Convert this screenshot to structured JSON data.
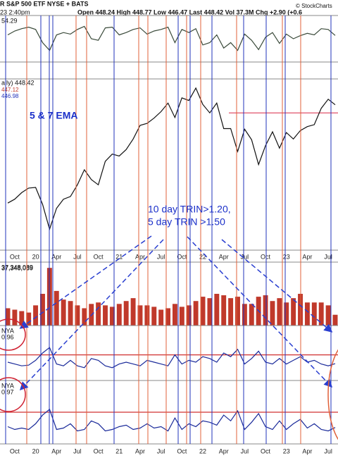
{
  "header": {
    "title": "R S&P 500 ETF NYSE + BATS",
    "quote": "Open 448.24 High 448.77 Low 446.47 Last 448.42 Vol 37.3M Chg +2.90 (+0.6",
    "time": "23 2:40pm",
    "source": "© StockCharts"
  },
  "chart_data": [
    {
      "type": "line",
      "legend": "54.29",
      "color": "#3a4a3a",
      "ylim": [
        20,
        80
      ],
      "categories": [
        null,
        "Oct",
        null,
        null,
        "20",
        null,
        null,
        "Apr",
        null,
        null,
        "Jul",
        null,
        null,
        "Oct",
        null,
        null,
        "21",
        null,
        null,
        "Apr",
        null,
        null,
        "Jul",
        null,
        null,
        "Oct",
        null,
        null,
        "22",
        null,
        null,
        "Apr",
        null,
        null,
        "Jul",
        null,
        null,
        "Oct",
        null,
        null,
        "23",
        null,
        null,
        "Apr",
        null,
        null,
        "Jul",
        null
      ],
      "values": [
        55,
        60,
        63,
        65,
        62,
        45,
        35,
        55,
        58,
        56,
        62,
        66,
        50,
        48,
        64,
        65,
        55,
        58,
        62,
        64,
        56,
        60,
        62,
        65,
        45,
        62,
        58,
        63,
        42,
        45,
        55,
        38,
        45,
        35,
        56,
        48,
        36,
        52,
        58,
        44,
        56,
        50,
        54,
        57,
        55,
        63,
        62,
        54.29
      ]
    },
    {
      "type": "line",
      "series": [
        {
          "name": "aily) 448.42",
          "color": "#111111",
          "values": [
            298,
            304,
            314,
            321,
            322,
            296,
            258,
            290,
            304,
            308,
            326,
            349,
            334,
            326,
            362,
            373,
            370,
            380,
            396,
            417,
            420,
            428,
            438,
            451,
            429,
            459,
            455,
            474,
            449,
            436,
            451,
            412,
            412,
            377,
            411,
            395,
            357,
            386,
            407,
            382,
            406,
            396,
            409,
            415,
            418,
            443,
            457,
            448.42
          ]
        }
      ],
      "legend_values": [
        {
          "label": "447.12",
          "color": "#c0392b"
        },
        {
          "label": "446.98",
          "color": "#2233bb"
        }
      ],
      "ylim": [
        226,
        488
      ],
      "hline": {
        "value": 436,
        "color": "#e0506a"
      },
      "annotations": [
        "5 & 7 EMA",
        "10 day TRIN>1.20,",
        "5 day TRIN >1.50"
      ]
    },
    {
      "type": "bar",
      "legend": "37,348,089",
      "color": "#c0392b",
      "ylim": [
        0,
        220
      ],
      "values": [
        60,
        55,
        50,
        45,
        70,
        110,
        200,
        120,
        90,
        85,
        70,
        60,
        75,
        80,
        70,
        65,
        75,
        85,
        95,
        70,
        70,
        65,
        55,
        60,
        75,
        65,
        70,
        85,
        100,
        95,
        110,
        105,
        95,
        100,
        75,
        75,
        100,
        105,
        85,
        95,
        80,
        95,
        110,
        80,
        80,
        80,
        70,
        37.348089
      ],
      "value_labels": [
        null,
        null,
        null,
        null,
        null,
        null,
        null,
        null,
        null,
        null,
        null,
        null,
        null,
        null,
        null,
        null,
        null,
        null,
        null,
        null,
        null,
        null,
        null,
        null,
        null,
        null,
        null,
        null,
        null,
        null,
        null,
        null,
        null,
        null,
        null,
        null,
        null,
        null,
        null,
        null,
        null,
        null,
        null,
        null,
        null,
        null,
        null,
        "37,348,089"
      ]
    },
    {
      "type": "line",
      "legend": "NYA",
      "last": "0.96",
      "color": "#1a2a9a",
      "ylim": [
        0.5,
        2.0
      ],
      "hline": {
        "value": 1.2,
        "color": "#d03030"
      },
      "values": [
        1.0,
        0.95,
        0.9,
        0.92,
        1.05,
        1.25,
        1.4,
        0.95,
        0.9,
        1.05,
        0.9,
        0.85,
        1.1,
        1.05,
        0.9,
        0.85,
        0.95,
        1.0,
        0.95,
        0.9,
        1.05,
        1.0,
        0.95,
        0.9,
        1.2,
        0.95,
        1.05,
        1.0,
        1.15,
        1.1,
        1.0,
        1.25,
        1.15,
        1.35,
        0.95,
        1.1,
        1.3,
        1.0,
        0.95,
        1.1,
        0.95,
        1.05,
        1.15,
        1.0,
        1.05,
        0.95,
        0.9,
        0.96
      ]
    },
    {
      "type": "line",
      "legend": "NYA",
      "last": "0.97",
      "color": "#1a2a9a",
      "ylim": [
        0.4,
        2.6
      ],
      "hline": {
        "value": 1.5,
        "color": "#d03030"
      },
      "values": [
        1.0,
        0.9,
        0.95,
        0.9,
        1.1,
        1.4,
        1.6,
        0.9,
        0.95,
        1.1,
        0.85,
        0.9,
        1.2,
        1.1,
        0.85,
        0.9,
        1.0,
        1.05,
        0.9,
        0.95,
        1.1,
        0.95,
        1.0,
        0.85,
        1.3,
        0.9,
        1.1,
        1.0,
        1.2,
        1.15,
        1.05,
        1.4,
        1.2,
        1.55,
        0.9,
        1.15,
        1.45,
        1.0,
        0.9,
        1.2,
        0.9,
        1.1,
        1.25,
        0.95,
        1.1,
        0.9,
        0.85,
        0.97
      ]
    }
  ]
}
